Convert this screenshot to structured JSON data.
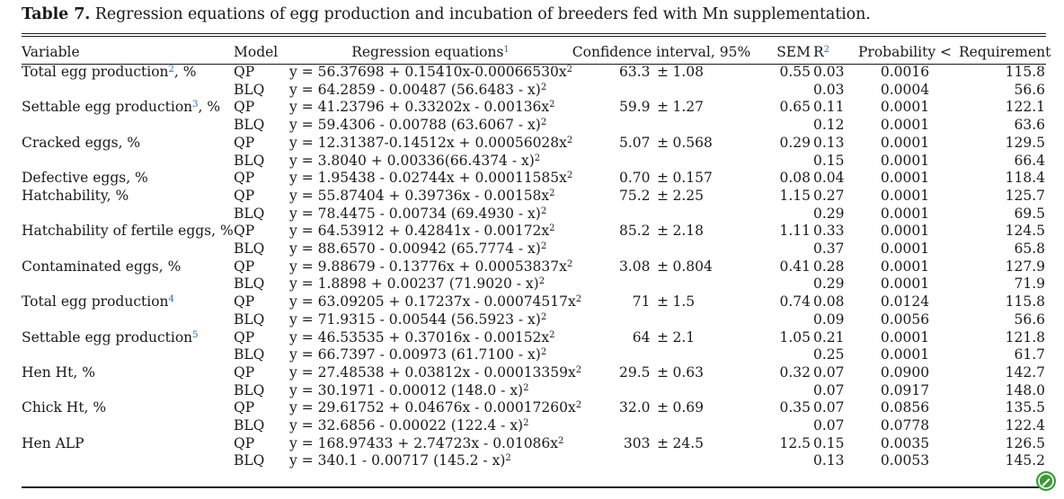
{
  "caption": {
    "label": "Table 7.",
    "text": " Regression equations of egg production and incubation of breeders fed with Mn supplementation."
  },
  "headers": {
    "variable": "Variable",
    "model": "Model",
    "equation": "Regression equations",
    "equation_footnote": "1",
    "ci": "Confidence interval, 95%",
    "sem": "SEM",
    "r2_base": "R",
    "r2_sup": "2",
    "probability": "Probability <",
    "requirement": "Requirement"
  },
  "rows": [
    {
      "variable": "Total egg production",
      "var_fn": "2",
      "var_unit": ", %",
      "model": "QP",
      "eq": "y = 56.37698 + 0.15410x-0.00066530x",
      "eq_sup": "2",
      "ci_mean": "63.3",
      "ci_pm": "±",
      "ci_hw": "1.08",
      "sem": "0.55",
      "r2": "0.03",
      "prob": "0.0016",
      "req": "115.8"
    },
    {
      "variable": "",
      "var_fn": "",
      "var_unit": "",
      "model": "BLQ",
      "eq": "y = 64.2859 - 0.00487 (56.6483 - x)",
      "eq_sup": "2",
      "ci_mean": "",
      "ci_pm": "",
      "ci_hw": "",
      "sem": "",
      "r2": "0.03",
      "prob": "0.0004",
      "req": "56.6"
    },
    {
      "variable": "Settable egg production",
      "var_fn": "3",
      "var_unit": ", %",
      "model": "QP",
      "eq": "y = 41.23796 + 0.33202x - 0.00136x",
      "eq_sup": "2",
      "ci_mean": "59.9",
      "ci_pm": "±",
      "ci_hw": "1.27",
      "sem": "0.65",
      "r2": "0.11",
      "prob": "0.0001",
      "req": "122.1"
    },
    {
      "variable": "",
      "var_fn": "",
      "var_unit": "",
      "model": "BLQ",
      "eq": "y = 59.4306 - 0.00788 (63.6067 - x)",
      "eq_sup": "2",
      "ci_mean": "",
      "ci_pm": "",
      "ci_hw": "",
      "sem": "",
      "r2": "0.12",
      "prob": "0.0001",
      "req": "63.6"
    },
    {
      "variable": "Cracked eggs, %",
      "var_fn": "",
      "var_unit": "",
      "model": "QP",
      "eq": "y = 12.31387-0.14512x + 0.00056028x",
      "eq_sup": "2",
      "ci_mean": "5.07",
      "ci_pm": "±",
      "ci_hw": "0.568",
      "sem": "0.29",
      "r2": "0.13",
      "prob": "0.0001",
      "req": "129.5"
    },
    {
      "variable": "",
      "var_fn": "",
      "var_unit": "",
      "model": "BLQ",
      "eq": "y = 3.8040 + 0.00336(66.4374 - x)",
      "eq_sup": "2",
      "ci_mean": "",
      "ci_pm": "",
      "ci_hw": "",
      "sem": "",
      "r2": "0.15",
      "prob": "0.0001",
      "req": "66.4"
    },
    {
      "variable": "Defective eggs, %",
      "var_fn": "",
      "var_unit": "",
      "model": "QP",
      "eq": "y = 1.95438 - 0.02744x + 0.00011585x",
      "eq_sup": "2",
      "ci_mean": "0.70",
      "ci_pm": "±",
      "ci_hw": "0.157",
      "sem": "0.08",
      "r2": "0.04",
      "prob": "0.0001",
      "req": "118.4"
    },
    {
      "variable": "Hatchability, %",
      "var_fn": "",
      "var_unit": "",
      "model": "QP",
      "eq": "y = 55.87404 + 0.39736x - 0.00158x",
      "eq_sup": "2",
      "ci_mean": "75.2",
      "ci_pm": "±",
      "ci_hw": "2.25",
      "sem": "1.15",
      "r2": "0.27",
      "prob": "0.0001",
      "req": "125.7"
    },
    {
      "variable": "",
      "var_fn": "",
      "var_unit": "",
      "model": "BLQ",
      "eq": "y = 78.4475 - 0.00734 (69.4930 - x)",
      "eq_sup": "2",
      "ci_mean": "",
      "ci_pm": "",
      "ci_hw": "",
      "sem": "",
      "r2": "0.29",
      "prob": "0.0001",
      "req": "69.5"
    },
    {
      "variable": "Hatchability of fertile eggs, %",
      "var_fn": "",
      "var_unit": "",
      "model": "QP",
      "eq": "y = 64.53912 + 0.42841x - 0.00172x",
      "eq_sup": "2",
      "ci_mean": "85.2",
      "ci_pm": "±",
      "ci_hw": "2.18",
      "sem": "1.11",
      "r2": "0.33",
      "prob": "0.0001",
      "req": "124.5"
    },
    {
      "variable": "",
      "var_fn": "",
      "var_unit": "",
      "model": "BLQ",
      "eq": "y = 88.6570 - 0.00942 (65.7774 - x)",
      "eq_sup": "2",
      "ci_mean": "",
      "ci_pm": "",
      "ci_hw": "",
      "sem": "",
      "r2": "0.37",
      "prob": "0.0001",
      "req": "65.8"
    },
    {
      "variable": "Contaminated eggs, %",
      "var_fn": "",
      "var_unit": "",
      "model": "QP",
      "eq": "y = 9.88679 - 0.13776x + 0.00053837x",
      "eq_sup": "2",
      "ci_mean": "3.08",
      "ci_pm": "±",
      "ci_hw": "0.804",
      "sem": "0.41",
      "r2": "0.28",
      "prob": "0.0001",
      "req": "127.9"
    },
    {
      "variable": "",
      "var_fn": "",
      "var_unit": "",
      "model": "BLQ",
      "eq": "y = 1.8898 + 0.00237 (71.9020 - x)",
      "eq_sup": "2",
      "ci_mean": "",
      "ci_pm": "",
      "ci_hw": "",
      "sem": "",
      "r2": "0.29",
      "prob": "0.0001",
      "req": "71.9"
    },
    {
      "variable": "Total egg production",
      "var_fn": "4",
      "var_unit": "",
      "model": "QP",
      "eq": "y = 63.09205 + 0.17237x - 0.00074517x",
      "eq_sup": "2",
      "ci_mean": "71",
      "ci_pm": "±",
      "ci_hw": "1.5",
      "sem": "0.74",
      "r2": "0.08",
      "prob": "0.0124",
      "req": "115.8"
    },
    {
      "variable": "",
      "var_fn": "",
      "var_unit": "",
      "model": "BLQ",
      "eq": "y = 71.9315 - 0.00544 (56.5923 - x)",
      "eq_sup": "2",
      "ci_mean": "",
      "ci_pm": "",
      "ci_hw": "",
      "sem": "",
      "r2": "0.09",
      "prob": "0.0056",
      "req": "56.6"
    },
    {
      "variable": "Settable egg production",
      "var_fn": "5",
      "var_unit": "",
      "model": "QP",
      "eq": "y = 46.53535 + 0.37016x - 0.00152x",
      "eq_sup": "2",
      "ci_mean": "64",
      "ci_pm": "±",
      "ci_hw": "2.1",
      "sem": "1.05",
      "r2": "0.21",
      "prob": "0.0001",
      "req": "121.8"
    },
    {
      "variable": "",
      "var_fn": "",
      "var_unit": "",
      "model": "BLQ",
      "eq": "y = 66.7397 - 0.00973 (61.7100 - x)",
      "eq_sup": "2",
      "ci_mean": "",
      "ci_pm": "",
      "ci_hw": "",
      "sem": "",
      "r2": "0.25",
      "prob": "0.0001",
      "req": "61.7"
    },
    {
      "variable": "Hen Ht, %",
      "var_fn": "",
      "var_unit": "",
      "model": "QP",
      "eq": "y = 27.48538 + 0.03812x - 0.00013359x",
      "eq_sup": "2",
      "ci_mean": "29.5",
      "ci_pm": "±",
      "ci_hw": "0.63",
      "sem": "0.32",
      "r2": "0.07",
      "prob": "0.0900",
      "req": "142.7"
    },
    {
      "variable": "",
      "var_fn": "",
      "var_unit": "",
      "model": "BLQ",
      "eq": "y = 30.1971 - 0.00012 (148.0 - x)",
      "eq_sup": "2",
      "ci_mean": "",
      "ci_pm": "",
      "ci_hw": "",
      "sem": "",
      "r2": "0.07",
      "prob": "0.0917",
      "req": "148.0"
    },
    {
      "variable": "Chick Ht, %",
      "var_fn": "",
      "var_unit": "",
      "model": "QP",
      "eq": "y = 29.61752 + 0.04676x - 0.00017260x",
      "eq_sup": "2",
      "ci_mean": "32.0",
      "ci_pm": "±",
      "ci_hw": "0.69",
      "sem": "0.35",
      "r2": "0.07",
      "prob": "0.0856",
      "req": "135.5"
    },
    {
      "variable": "",
      "var_fn": "",
      "var_unit": "",
      "model": "BLQ",
      "eq": "y = 32.6856 - 0.00022 (122.4 - x)",
      "eq_sup": "2",
      "ci_mean": "",
      "ci_pm": "",
      "ci_hw": "",
      "sem": "",
      "r2": "0.07",
      "prob": "0.0778",
      "req": "122.4"
    },
    {
      "variable": "Hen ALP",
      "var_fn": "",
      "var_unit": "",
      "model": "QP",
      "eq": "y = 168.97433 + 2.74723x - 0.01086x",
      "eq_sup": "2",
      "ci_mean": "303",
      "ci_pm": "±",
      "ci_hw": "24.5",
      "sem": "12.5",
      "r2": "0.15",
      "prob": "0.0035",
      "req": "126.5"
    },
    {
      "variable": "",
      "var_fn": "",
      "var_unit": "",
      "model": "BLQ",
      "eq": "y = 340.1 - 0.00717 (145.2 - x)",
      "eq_sup": "2",
      "ci_mean": "",
      "ci_pm": "",
      "ci_hw": "",
      "sem": "",
      "r2": "0.13",
      "prob": "0.0053",
      "req": "145.2"
    }
  ],
  "colors": {
    "text": "#1a1a1a",
    "footnote_link": "#2b6cb0",
    "badge": "#3d9a3a"
  },
  "badge_icon": "pencil-leaf-icon"
}
